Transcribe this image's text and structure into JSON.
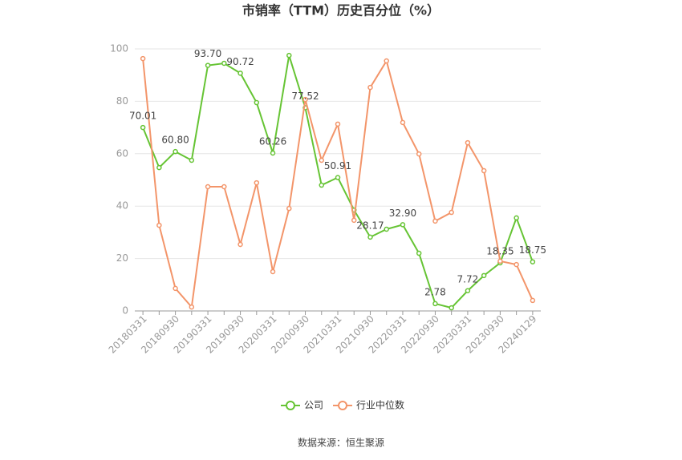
{
  "chart_data": {
    "type": "line",
    "title": "市销率（TTM）历史百分位（%）",
    "categories": [
      "20180331",
      null,
      "20180930",
      null,
      "20190331",
      null,
      "20190930",
      null,
      "20200331",
      null,
      "20200930",
      null,
      "20210331",
      null,
      "20210930",
      null,
      "20220331",
      null,
      "20220930",
      null,
      "20230331",
      null,
      "20230930",
      null,
      "20240129"
    ],
    "series": [
      {
        "name": "公司",
        "color": "#66c434",
        "values": [
          70.01,
          54.7,
          60.8,
          57.5,
          93.7,
          94.5,
          90.72,
          79.5,
          60.26,
          97.5,
          77.52,
          48.0,
          50.91,
          38.5,
          28.17,
          31.2,
          32.9,
          22.0,
          2.78,
          1.2,
          7.72,
          13.5,
          18.35,
          35.5,
          18.75
        ],
        "value_labels": [
          "70.01",
          null,
          "60.80",
          null,
          "93.70",
          null,
          "90.72",
          null,
          "60.26",
          null,
          "77.52",
          null,
          "50.91",
          null,
          "28.17",
          null,
          "32.90",
          null,
          "2.78",
          null,
          "7.72",
          null,
          "18.35",
          null,
          "18.75"
        ]
      },
      {
        "name": "行业中位数",
        "color": "#f3956a",
        "values": [
          96.3,
          32.7,
          8.6,
          1.5,
          47.4,
          47.4,
          25.4,
          48.9,
          15.0,
          39.1,
          80.7,
          57.5,
          71.3,
          34.6,
          85.3,
          95.4,
          71.9,
          59.9,
          34.3,
          37.6,
          64.2,
          53.5,
          19.0,
          17.7,
          4.0
        ]
      }
    ],
    "ylim": [
      0,
      100
    ],
    "yticks": [
      0,
      20,
      40,
      60,
      80,
      100
    ],
    "grid": true,
    "legend": "bottom",
    "source": "数据来源：恒生聚源"
  }
}
